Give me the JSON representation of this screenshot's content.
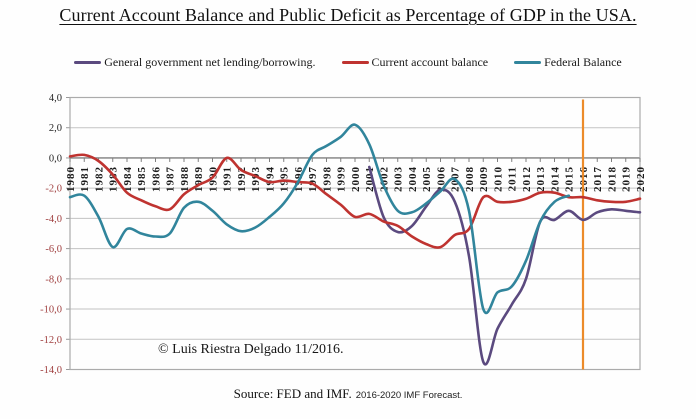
{
  "title": "Current Account Balance and Public Deficit as Percentage of GDP in the USA.",
  "legend": [
    {
      "label": "General government net lending/borrowing.",
      "color": "#5b4a7f"
    },
    {
      "label": "Current account balance",
      "color": "#bf3330"
    },
    {
      "label": "Federal Balance",
      "color": "#31859c"
    }
  ],
  "annotations": {
    "copyright": "© Luis Riestra Delgado 11/2016.",
    "source_main": "Source: FED and IMF.",
    "source_note": "2016-2020 IMF Forecast."
  },
  "chart_data": {
    "type": "line",
    "title": "Current Account Balance and Public Deficit as Percentage of GDP in the USA.",
    "xlabel": "",
    "ylabel": "",
    "ylim": [
      -14,
      4
    ],
    "grid": true,
    "legend_position": "top",
    "x": [
      1980,
      1981,
      1982,
      1983,
      1984,
      1985,
      1986,
      1987,
      1988,
      1989,
      1990,
      1991,
      1992,
      1993,
      1994,
      1995,
      1996,
      1997,
      1998,
      1999,
      2000,
      2001,
      2002,
      2003,
      2004,
      2005,
      2006,
      2007,
      2008,
      2009,
      2010,
      2011,
      2012,
      2013,
      2014,
      2015,
      2016,
      2017,
      2018,
      2019,
      2020
    ],
    "yticks": [
      {
        "v": 4,
        "label": "4,0"
      },
      {
        "v": 2,
        "label": "2,0"
      },
      {
        "v": 0,
        "label": "0,0"
      },
      {
        "v": -2,
        "label": "-2,0"
      },
      {
        "v": -4,
        "label": "-4,0"
      },
      {
        "v": -6,
        "label": "-6,0"
      },
      {
        "v": -8,
        "label": "-8,0"
      },
      {
        "v": -10,
        "label": "-10,0"
      },
      {
        "v": -12,
        "label": "-12,0"
      },
      {
        "v": -14,
        "label": "-14,0"
      }
    ],
    "positive_tick_color": "#262626",
    "negative_tick_color": "#a04040",
    "forecast_line": {
      "x": 2016,
      "color": "#ec8b2a",
      "note": "2016-2020 IMF Forecast"
    },
    "series": [
      {
        "name": "General government net lending/borrowing.",
        "color": "#5b4a7f",
        "values": [
          null,
          null,
          null,
          null,
          null,
          null,
          null,
          null,
          null,
          null,
          null,
          null,
          null,
          null,
          null,
          null,
          null,
          null,
          null,
          null,
          null,
          -0.6,
          -3.9,
          -4.9,
          -4.5,
          -3.2,
          -2.1,
          -2.9,
          -6.5,
          -13.5,
          -11.3,
          -9.7,
          -8.0,
          -4.2,
          -4.1,
          -3.5,
          -4.1,
          -3.6,
          -3.4,
          -3.5,
          -3.6
        ]
      },
      {
        "name": "Current account balance",
        "color": "#bf3330",
        "values": [
          0.1,
          0.2,
          -0.2,
          -1.1,
          -2.3,
          -2.8,
          -3.2,
          -3.4,
          -2.4,
          -1.8,
          -1.3,
          0.0,
          -0.8,
          -1.2,
          -1.6,
          -1.5,
          -1.6,
          -1.7,
          -2.4,
          -3.1,
          -3.9,
          -3.7,
          -4.2,
          -4.5,
          -5.2,
          -5.7,
          -5.9,
          -5.1,
          -4.7,
          -2.6,
          -2.9,
          -2.9,
          -2.7,
          -2.3,
          -2.3,
          -2.6,
          -2.6,
          -2.8,
          -2.9,
          -2.9,
          -2.7
        ]
      },
      {
        "name": "Federal Balance",
        "color": "#31859c",
        "values": [
          -2.6,
          -2.5,
          -3.9,
          -5.9,
          -4.7,
          -5.0,
          -5.2,
          -5.0,
          -3.3,
          -2.9,
          -3.5,
          -4.4,
          -4.85,
          -4.6,
          -3.9,
          -3.0,
          -1.6,
          0.2,
          0.8,
          1.4,
          2.2,
          0.9,
          -1.8,
          -3.5,
          -3.6,
          -3.0,
          -2.2,
          -1.4,
          -3.5,
          -10.0,
          -8.9,
          -8.5,
          -6.8,
          -4.2,
          -2.9,
          -2.5,
          null,
          null,
          null,
          null,
          null
        ]
      }
    ]
  }
}
